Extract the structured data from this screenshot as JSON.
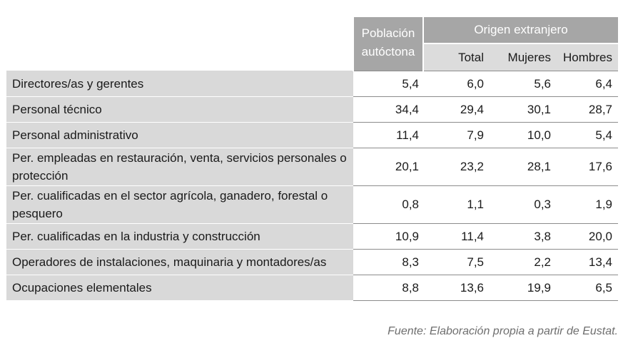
{
  "header": {
    "poblacion_label": "Población autóctona",
    "origen_label": "Origen extranjero",
    "total_label": "Total",
    "mujeres_label": "Mujeres",
    "hombres_label": "Hombres"
  },
  "rows": [
    {
      "label": "Directores/as y gerentes",
      "poblacion": "5,4",
      "total": "6,0",
      "mujeres": "5,6",
      "hombres": "6,4"
    },
    {
      "label": "Personal técnico",
      "poblacion": "34,4",
      "total": "29,4",
      "mujeres": "30,1",
      "hombres": "28,7"
    },
    {
      "label": "Personal administrativo",
      "poblacion": "11,4",
      "total": "7,9",
      "mujeres": "10,0",
      "hombres": "5,4"
    },
    {
      "label": "Per. empleadas en restauración, venta, servicios personales o protección",
      "poblacion": "20,1",
      "total": "23,2",
      "mujeres": "28,1",
      "hombres": "17,6"
    },
    {
      "label": "Per. cualificadas en el sector agrícola, ganadero, forestal o pesquero",
      "poblacion": "0,8",
      "total": "1,1",
      "mujeres": "0,3",
      "hombres": "1,9"
    },
    {
      "label": "Per. cualificadas en la industria y construcción",
      "poblacion": "10,9",
      "total": "11,4",
      "mujeres": "3,8",
      "hombres": "20,0"
    },
    {
      "label": "Operadores de instalaciones, maquinaria y montadores/as",
      "poblacion": "8,3",
      "total": "7,5",
      "mujeres": "2,2",
      "hombres": "13,4"
    },
    {
      "label": "Ocupaciones elementales",
      "poblacion": "8,8",
      "total": "13,6",
      "mujeres": "19,9",
      "hombres": "6,5"
    }
  ],
  "source": "Fuente:  Elaboración propia a partir de Eustat.",
  "colors": {
    "header_bg": "#a6a6a6",
    "subheader_bg": "#dcdcdc",
    "label_bg": "#d9d9d9",
    "rule": "#8c8c8c"
  }
}
